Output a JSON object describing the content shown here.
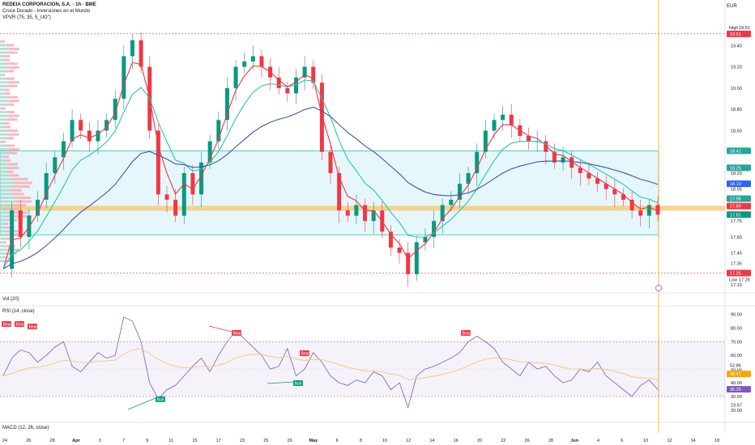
{
  "header": {
    "symbol_line": "REDEIA CORPORACION, S.A. · 1h · BME",
    "indicator_line": "Cruce Dorado - Inversiones en el Mundo",
    "vpvr_line": "VPVR (75, 35, 5_UO\")",
    "currency": "EUR"
  },
  "subpanes": {
    "vol_label": "Vol (20)",
    "rsi_label": "RSI (14, close)",
    "macd_label": "MACD (12, 26, close)"
  },
  "price_axis": {
    "ticks": [
      "19.40",
      "19.20",
      "19.00",
      "18.80",
      "18.60",
      "18.40",
      "18.25",
      "18.20",
      "18.05",
      "17.90",
      "17.75",
      "17.60",
      "17.45",
      "17.35",
      "17.15"
    ],
    "high_label": "High",
    "high_value": "19.51",
    "high_badge": "19.51",
    "low_label": "Low",
    "low_value": "17.26",
    "low_badge": "17.26",
    "badges": [
      {
        "value": "18.25",
        "color": "#26a69a"
      },
      {
        "value": "18.10",
        "color": "#2962ff"
      },
      {
        "value": "17.96",
        "color": "#26a69a"
      },
      {
        "value": "17.89",
        "color": "#f23645"
      },
      {
        "value": "17.81",
        "color": "#089981"
      },
      {
        "value": "18.41",
        "color": "#26a69a"
      }
    ]
  },
  "rsi_axis": {
    "ticks": [
      "90.00",
      "80.00",
      "70.00",
      "60.00",
      "50.00",
      "40.00",
      "30.00",
      "23.67",
      "20.00"
    ],
    "badges": [
      {
        "value": "52.86",
        "color": "#ffffff",
        "text": "#131722"
      },
      {
        "value": "46.47",
        "color": "#f7a600",
        "text": "#ffffff"
      },
      {
        "value": "35.25",
        "color": "#7e57c2",
        "text": "#ffffff"
      }
    ]
  },
  "time_axis": [
    "24",
    "26",
    "28",
    "Apr",
    "3",
    "7",
    "9",
    "11",
    "15",
    "17",
    "23",
    "25",
    "29",
    "May",
    "6",
    "8",
    "10",
    "12",
    "14",
    "16",
    "20",
    "22",
    "26",
    "28",
    "Jun",
    "4",
    "6",
    "10",
    "12",
    "14",
    "18"
  ],
  "signals": {
    "bear": "Bear",
    "bull": "Bull"
  },
  "colors": {
    "candle_up": "#089981",
    "candle_down": "#f23645",
    "ema_fast": "#f23645",
    "ema_mid": "#26c6b0",
    "ema_slow": "#3f51b5",
    "rsi": "#7e57c2",
    "rsi_ma": "#f7c873",
    "zone_fill": "#e6f7fb",
    "zone_border": "#26c6b0",
    "poc_band": "#f7c873"
  },
  "chart_data": {
    "type": "candlestick",
    "symbol": "REDEIA CORPORACION, S.A.",
    "timeframe": "1h",
    "exchange": "BME",
    "currency": "EUR",
    "ylim": [
      17.15,
      19.6
    ],
    "high": 19.51,
    "low": 17.26,
    "last": 17.81,
    "zone": [
      17.62,
      18.41
    ],
    "poc": 17.87,
    "close_path": [
      17.3,
      17.85,
      17.6,
      17.8,
      17.95,
      18.2,
      18.35,
      18.5,
      18.7,
      18.6,
      18.5,
      18.6,
      18.7,
      18.9,
      19.3,
      19.45,
      19.2,
      18.6,
      18.0,
      17.95,
      17.8,
      18.2,
      18.0,
      18.3,
      18.5,
      18.7,
      19.0,
      19.2,
      19.25,
      19.3,
      19.2,
      19.1,
      19.0,
      18.95,
      19.1,
      19.2,
      19.05,
      18.4,
      18.2,
      17.85,
      17.8,
      17.9,
      17.75,
      17.85,
      17.65,
      17.5,
      17.45,
      17.25,
      17.55,
      17.6,
      17.75,
      17.9,
      17.95,
      18.1,
      18.2,
      18.4,
      18.6,
      18.7,
      18.75,
      18.65,
      18.55,
      18.5,
      18.5,
      18.4,
      18.3,
      18.35,
      18.25,
      18.2,
      18.15,
      18.1,
      18.05,
      18.0,
      17.95,
      17.85,
      17.8,
      17.9,
      17.81
    ],
    "rsi": {
      "overbought": 70,
      "oversold": 30,
      "last": 35.25,
      "ma_last": 46.47,
      "values": [
        45,
        58,
        64,
        62,
        55,
        60,
        66,
        70,
        52,
        48,
        55,
        62,
        58,
        60,
        88,
        85,
        70,
        40,
        28,
        35,
        38,
        45,
        52,
        58,
        48,
        60,
        70,
        78,
        72,
        66,
        60,
        50,
        52,
        65,
        45,
        50,
        62,
        55,
        45,
        40,
        38,
        42,
        40,
        48,
        45,
        35,
        40,
        22,
        45,
        50,
        52,
        55,
        58,
        62,
        70,
        74,
        70,
        65,
        55,
        50,
        45,
        55,
        50,
        52,
        45,
        40,
        42,
        50,
        48,
        55,
        45,
        40,
        35,
        30,
        38,
        42,
        35
      ]
    },
    "rsi_axis_ticks": [
      90,
      80,
      70,
      60,
      50,
      40,
      30,
      20
    ]
  }
}
